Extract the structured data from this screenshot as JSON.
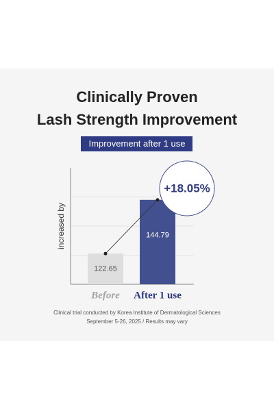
{
  "chart_data": {
    "type": "bar",
    "title": [
      "Clinically Proven",
      "Lash Strength Improvement"
    ],
    "subtitle": "Improvement after 1 use",
    "ylabel": "increased by",
    "categories": [
      "Before",
      "After 1 use"
    ],
    "values": [
      122.65,
      144.79
    ],
    "colors": [
      "#dedede",
      "#43508f"
    ],
    "ylim": [
      110,
      158
    ],
    "yticks": [
      122,
      134,
      146
    ],
    "grid": true,
    "annotation": "+18.05%",
    "notes": [
      "Clinical trial conducted by Korea Institute of Dermatological Sciences",
      "September 5-26, 2025 / Results may vary"
    ]
  }
}
